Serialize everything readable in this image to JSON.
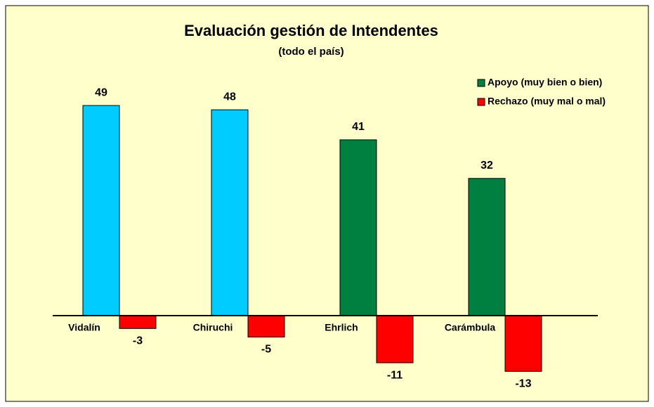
{
  "chart_data": {
    "type": "bar",
    "title": "Evaluación gestión de Intendentes",
    "subtitle": "(todo el país)",
    "categories": [
      "Vidalín",
      "Chiruchi",
      "Ehrlich",
      "Carámbula"
    ],
    "series": [
      {
        "name": "Apoyo (muy bien o bien)",
        "color": "#008040",
        "colors": [
          "#00ccff",
          "#00ccff",
          "#008040",
          "#008040"
        ],
        "values": [
          49,
          48,
          41,
          32
        ]
      },
      {
        "name": "Rechazo (muy mal o mal)",
        "color": "#ff0000",
        "values": [
          -3,
          -5,
          -11,
          -13
        ]
      }
    ],
    "legend": "upper right"
  }
}
